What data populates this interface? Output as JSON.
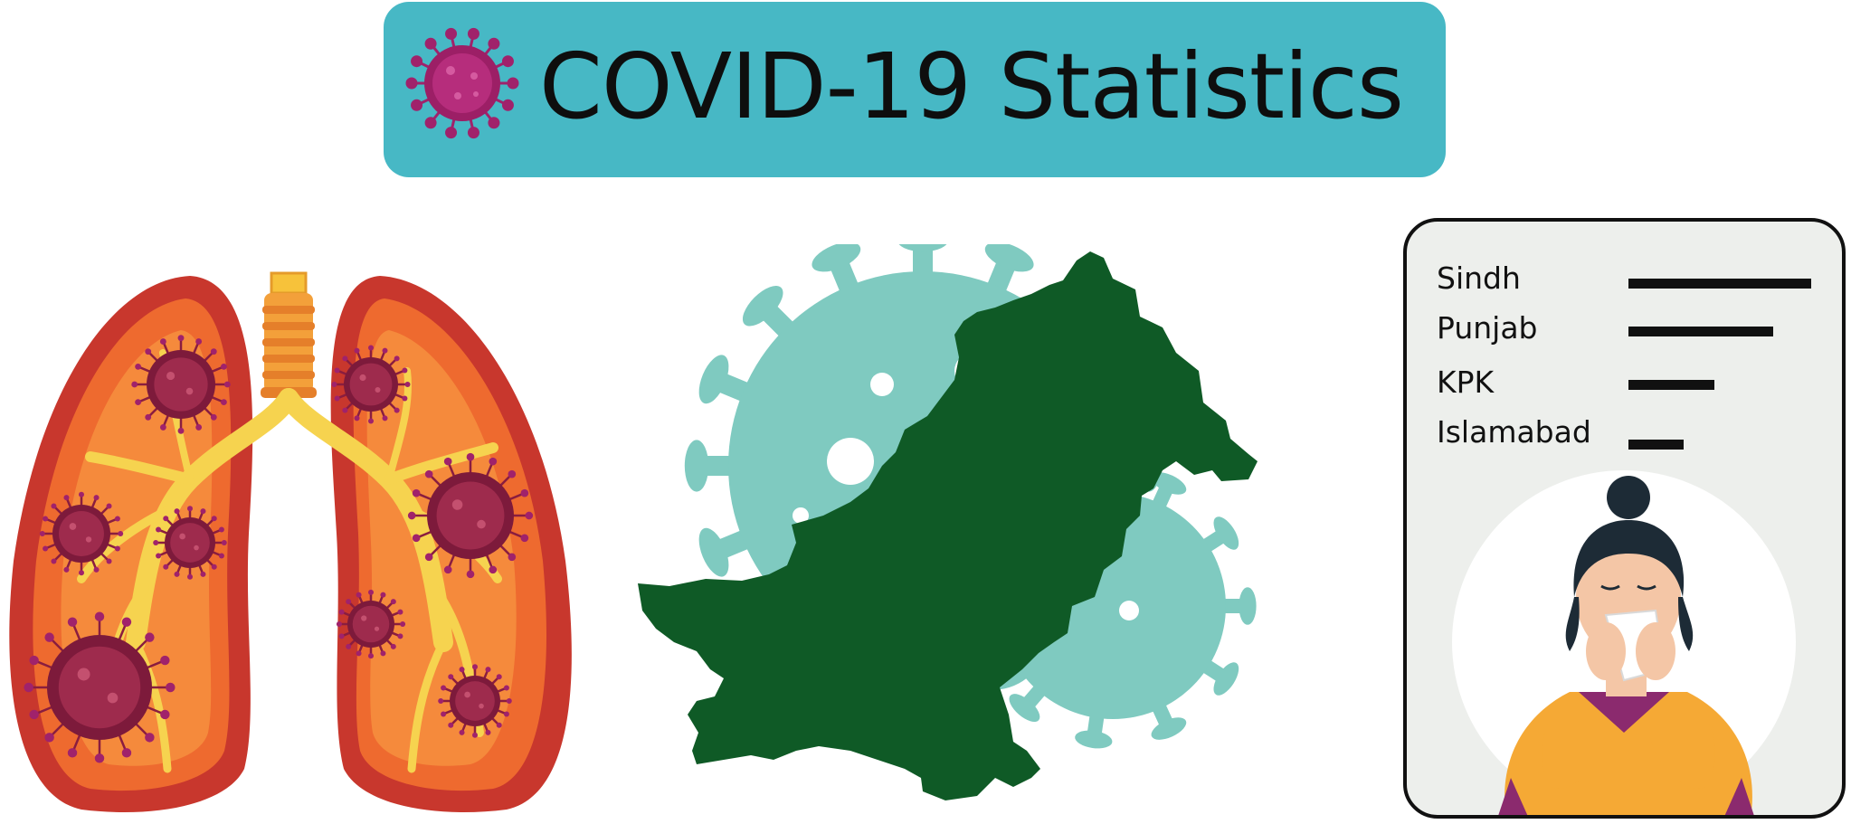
{
  "header": {
    "title": "COVID-19 Statistics",
    "icon": "virus-icon",
    "background_color": "#47b8c5"
  },
  "illustrations": {
    "lungs": "infected-lungs-illustration",
    "map": "pakistan-map-with-virus",
    "person": "sneezing-woman-illustration"
  },
  "stats_card": {
    "regions": [
      {
        "label": "Sindh",
        "relative_value": 1.0
      },
      {
        "label": "Punjab",
        "relative_value": 0.79
      },
      {
        "label": "KPK",
        "relative_value": 0.47
      },
      {
        "label": "Islamabad",
        "relative_value": 0.3
      }
    ]
  },
  "colors": {
    "map_green": "#0f5a26",
    "virus_teal": "#7fcac0",
    "virus_magenta": "#a0226b",
    "lung_red": "#c8372d"
  }
}
